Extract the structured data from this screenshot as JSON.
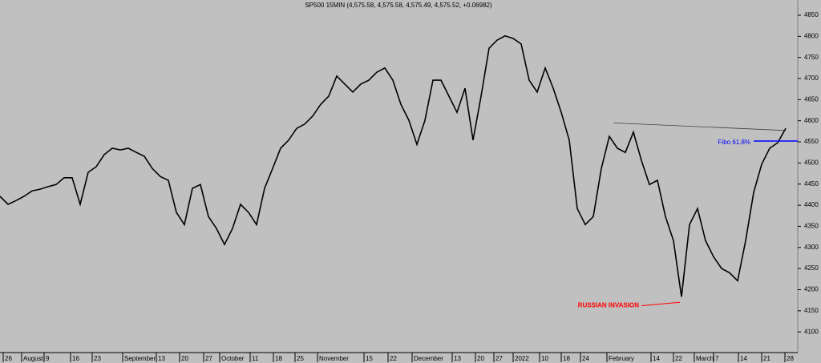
{
  "chart_data": {
    "type": "line",
    "title": "SP500 15MIN (4,575.58, 4,575.58, 4,575.49, 4,575.52, +0.06982)",
    "color": "#000000",
    "x": [
      0,
      1,
      2,
      3,
      4,
      5,
      6,
      7,
      8,
      9,
      10,
      11,
      12,
      13,
      14,
      15,
      16,
      17,
      18,
      19,
      20,
      21,
      22,
      23,
      24,
      25,
      26,
      27,
      28,
      29,
      30,
      31,
      32,
      33,
      34,
      35,
      36,
      37,
      38,
      39,
      40,
      41,
      42,
      43,
      44,
      45,
      46,
      47,
      48,
      49,
      50,
      51,
      52,
      53,
      54,
      55,
      56,
      57,
      58,
      59,
      60,
      61,
      62,
      63,
      64,
      65,
      66,
      67,
      68,
      69,
      70,
      71,
      72,
      73,
      74,
      75,
      76,
      77,
      78,
      79,
      80,
      81,
      82,
      83,
      84,
      85,
      86,
      87,
      88,
      89,
      90,
      91,
      92,
      93,
      94,
      95,
      96,
      97,
      98
    ],
    "values": [
      4421,
      4402,
      4411,
      4421,
      4434,
      4438,
      4444,
      4449,
      4465,
      4465,
      4402,
      4478,
      4491,
      4520,
      4535,
      4531,
      4535,
      4525,
      4516,
      4487,
      4468,
      4459,
      4383,
      4354,
      4440,
      4449,
      4373,
      4345,
      4307,
      4345,
      4402,
      4383,
      4354,
      4440,
      4487,
      4535,
      4554,
      4582,
      4592,
      4611,
      4639,
      4658,
      4706,
      4687,
      4668,
      4687,
      4696,
      4715,
      4725,
      4696,
      4639,
      4601,
      4544,
      4601,
      4696,
      4696,
      4658,
      4620,
      4677,
      4554,
      4658,
      4772,
      4791,
      4801,
      4795,
      4782,
      4696,
      4668,
      4725,
      4677,
      4620,
      4554,
      4392,
      4354,
      4373,
      4487,
      4563,
      4535,
      4525,
      4573,
      4506,
      4449,
      4459,
      4373,
      4316,
      4183,
      4354,
      4392,
      4316,
      4278,
      4250,
      4240,
      4221,
      4316,
      4430,
      4497,
      4535,
      4548,
      4582
    ],
    "xlim": [
      0,
      99.5
    ],
    "ylim": [
      4051,
      4886
    ],
    "yticks": [
      4100,
      4150,
      4200,
      4250,
      4300,
      4350,
      4400,
      4450,
      4500,
      4550,
      4600,
      4650,
      4700,
      4750,
      4800,
      4850
    ],
    "xticks": [
      {
        "value": 0.4,
        "label": "26"
      },
      {
        "value": 2.7,
        "label": "August"
      },
      {
        "value": 5.5,
        "label": "9"
      },
      {
        "value": 8.8,
        "label": "16"
      },
      {
        "value": 11.5,
        "label": "23"
      },
      {
        "value": 15.3,
        "label": "September"
      },
      {
        "value": 19.5,
        "label": "13"
      },
      {
        "value": 22.4,
        "label": "20"
      },
      {
        "value": 25.4,
        "label": "27"
      },
      {
        "value": 27.4,
        "label": "October"
      },
      {
        "value": 31.2,
        "label": "11"
      },
      {
        "value": 34.1,
        "label": "18"
      },
      {
        "value": 36.8,
        "label": "25"
      },
      {
        "value": 39.6,
        "label": "November"
      },
      {
        "value": 45.4,
        "label": "15"
      },
      {
        "value": 48.4,
        "label": "22"
      },
      {
        "value": 51.4,
        "label": "December"
      },
      {
        "value": 56.4,
        "label": "13"
      },
      {
        "value": 59.3,
        "label": "20"
      },
      {
        "value": 61.6,
        "label": "27"
      },
      {
        "value": 64,
        "label": "2022"
      },
      {
        "value": 67.3,
        "label": "10"
      },
      {
        "value": 70,
        "label": "18"
      },
      {
        "value": 72.4,
        "label": "24"
      },
      {
        "value": 75.7,
        "label": "February"
      },
      {
        "value": 81.2,
        "label": "14"
      },
      {
        "value": 84,
        "label": "22"
      },
      {
        "value": 86.6,
        "label": "March"
      },
      {
        "value": 89,
        "label": "7"
      },
      {
        "value": 92.1,
        "label": "14"
      },
      {
        "value": 95,
        "label": "21"
      },
      {
        "value": 97.9,
        "label": "28"
      }
    ],
    "trendline": {
      "x": [
        76.5,
        98
      ],
      "y": [
        4595,
        4577
      ],
      "color": "#404040"
    },
    "fibo": {
      "label": "Fibo 61.8%",
      "value": 4552,
      "x": [
        94,
        99.5
      ],
      "color": "#0000ff"
    },
    "annotation": {
      "text": "RUSSIAN INVASION",
      "x": [
        80,
        84.8
      ],
      "y": [
        4162,
        4170
      ],
      "color": "#ff0000"
    }
  }
}
